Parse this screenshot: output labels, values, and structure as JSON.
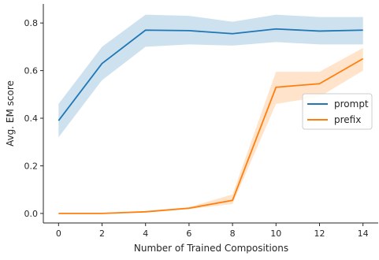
{
  "chart_data": {
    "type": "line",
    "title": "",
    "xlabel": "Number of Trained Compositions",
    "ylabel": "Avg. EM score",
    "x": [
      0,
      2,
      4,
      6,
      8,
      10,
      12,
      14
    ],
    "xticks": [
      0,
      2,
      4,
      6,
      8,
      10,
      12,
      14
    ],
    "yticks": [
      0.0,
      0.2,
      0.4,
      0.6,
      0.8
    ],
    "ytick_labels": [
      "0.0",
      "0.2",
      "0.4",
      "0.6",
      "0.8"
    ],
    "xlim": [
      -0.7,
      14.7
    ],
    "ylim": [
      -0.04,
      0.88
    ],
    "grid": false,
    "legend_position": "center-right",
    "series": [
      {
        "name": "prompt",
        "color": "#1f77b4",
        "values": [
          0.39,
          0.63,
          0.77,
          0.768,
          0.755,
          0.775,
          0.766,
          0.77
        ],
        "lower": [
          0.32,
          0.56,
          0.7,
          0.71,
          0.705,
          0.72,
          0.71,
          0.71
        ],
        "upper": [
          0.46,
          0.7,
          0.835,
          0.83,
          0.805,
          0.835,
          0.825,
          0.825
        ]
      },
      {
        "name": "prefix",
        "color": "#ff7f0e",
        "values": [
          0.0,
          0.0,
          0.007,
          0.022,
          0.055,
          0.53,
          0.545,
          0.65
        ],
        "lower": [
          0.0,
          0.0,
          0.004,
          0.018,
          0.04,
          0.46,
          0.49,
          0.6
        ],
        "upper": [
          0.0,
          0.0,
          0.01,
          0.026,
          0.08,
          0.595,
          0.595,
          0.695
        ]
      }
    ]
  }
}
